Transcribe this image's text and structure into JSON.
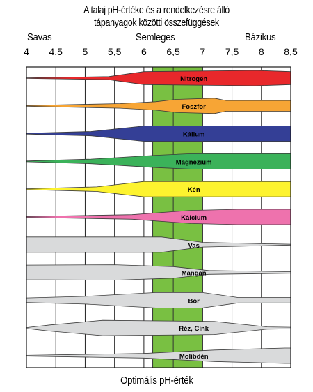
{
  "chart_data": {
    "type": "area",
    "title_lines": [
      "A talaj pH-értéke és a rendelkezésre álló",
      "tápanyagok közötti összefüggések"
    ],
    "region_labels": {
      "acid": "Savas",
      "neutral": "Semleges",
      "alkaline": "Bázikus"
    },
    "xlabel": "Optimális pH-érték",
    "x_ticks": [
      "4",
      "4,5",
      "5",
      "5,5",
      "6",
      "6,5",
      "7",
      "7,5",
      "8",
      "8,5"
    ],
    "x_tick_values": [
      4,
      4.5,
      5,
      5.5,
      6,
      6.5,
      7,
      7.5,
      8,
      8.5
    ],
    "xlim": [
      4,
      8.5
    ],
    "optimal_range": [
      6.15,
      7.0
    ],
    "highlight_color": "#79c042",
    "grid": true,
    "series": [
      {
        "name": "Nitrogén",
        "color": "#e8282b",
        "profile": [
          [
            4,
            0.04
          ],
          [
            5.4,
            0.2
          ],
          [
            6,
            0.85
          ],
          [
            7.9,
            1
          ],
          [
            8.5,
            0.85
          ]
        ]
      },
      {
        "name": "Foszfor",
        "color": "#f7a535",
        "profile": [
          [
            4,
            0.05
          ],
          [
            5.6,
            0.3
          ],
          [
            6.2,
            0.55
          ],
          [
            6.55,
            0.85
          ],
          [
            7.2,
            1
          ],
          [
            7.4,
            0.7
          ],
          [
            8.5,
            0.7
          ]
        ]
      },
      {
        "name": "Kálium",
        "color": "#343f96",
        "profile": [
          [
            4,
            0.05
          ],
          [
            5.1,
            0.28
          ],
          [
            6,
            1
          ],
          [
            8.5,
            1
          ]
        ]
      },
      {
        "name": "Magnézium",
        "color": "#3bb25a",
        "profile": [
          [
            4,
            0.05
          ],
          [
            5.1,
            0.3
          ],
          [
            6.2,
            0.8
          ],
          [
            6.8,
            1
          ],
          [
            8.5,
            1
          ]
        ]
      },
      {
        "name": "Kén",
        "color": "#fdf32f",
        "profile": [
          [
            4,
            0.05
          ],
          [
            5.2,
            0.3
          ],
          [
            6,
            1
          ],
          [
            8.5,
            1
          ]
        ]
      },
      {
        "name": "Kálcium",
        "color": "#ee72ad",
        "profile": [
          [
            4,
            0.05
          ],
          [
            5.8,
            0.3
          ],
          [
            6.8,
            0.85
          ],
          [
            7.6,
            1
          ],
          [
            8.5,
            1
          ]
        ]
      },
      {
        "name": "Vas",
        "color": "#d9dadb",
        "profile": [
          [
            4,
            1
          ],
          [
            6.3,
            1
          ],
          [
            7,
            0.3
          ],
          [
            8.5,
            0.05
          ]
        ]
      },
      {
        "name": "Mangán",
        "color": "#d9dadb",
        "profile": [
          [
            4,
            0.95
          ],
          [
            5.5,
            1
          ],
          [
            6.5,
            0.75
          ],
          [
            7.1,
            0.25
          ],
          [
            8.5,
            0.1
          ]
        ]
      },
      {
        "name": "Bór",
        "color": "#d9dadb",
        "profile": [
          [
            4,
            0.3
          ],
          [
            5,
            0.5
          ],
          [
            6.2,
            1
          ],
          [
            7,
            1
          ],
          [
            7.6,
            0.35
          ],
          [
            8.5,
            0.35
          ]
        ]
      },
      {
        "name": "Réz, Cink",
        "color": "#d9dadb",
        "profile": [
          [
            4,
            0.05
          ],
          [
            4.4,
            0.4
          ],
          [
            5.3,
            1
          ],
          [
            7.2,
            0.85
          ],
          [
            8.1,
            0.15
          ],
          [
            8.5,
            0.1
          ]
        ]
      },
      {
        "name": "Molibdén",
        "color": "#d9dadb",
        "profile": [
          [
            4,
            0.05
          ],
          [
            6,
            0.3
          ],
          [
            7.2,
            0.75
          ],
          [
            8.4,
            1
          ],
          [
            8.5,
            1
          ]
        ]
      }
    ]
  }
}
